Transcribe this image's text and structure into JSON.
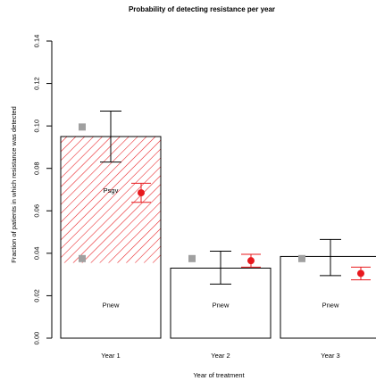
{
  "chart_data": {
    "type": "bar",
    "title": "Probability of detecting resistance per year",
    "xlabel": "Year of treatment",
    "ylabel": "Fraction of patients in which resistance was detected",
    "ylim": [
      0,
      0.14
    ],
    "yticks": [
      "0.00",
      "0.02",
      "0.04",
      "0.06",
      "0.08",
      "0.10",
      "0.12",
      "0.14"
    ],
    "categories": [
      "Year 1",
      "Year 2",
      "Year 3"
    ],
    "bars": [
      {
        "category": "Year 1",
        "total": 0.095,
        "error_low": 0.083,
        "error_high": 0.107,
        "segments": [
          {
            "label": "Pnew",
            "value": 0.0355,
            "fill": "white"
          },
          {
            "label": "Psgv",
            "value": 0.0595,
            "fill": "red-hatched"
          }
        ],
        "grey_points": [
          0.0995,
          0.0375
        ],
        "red_point": {
          "value": 0.0685,
          "error_low": 0.064,
          "error_high": 0.073
        }
      },
      {
        "category": "Year 2",
        "total": 0.033,
        "error_low": 0.0255,
        "error_high": 0.041,
        "segments": [
          {
            "label": "Pnew",
            "value": 0.033,
            "fill": "white"
          }
        ],
        "grey_points": [
          0.0375
        ],
        "red_point": {
          "value": 0.0365,
          "error_low": 0.0335,
          "error_high": 0.0395
        }
      },
      {
        "category": "Year 3",
        "total": 0.0385,
        "error_low": 0.0295,
        "error_high": 0.0465,
        "segments": [
          {
            "label": "Pnew",
            "value": 0.0385,
            "fill": "white"
          }
        ],
        "grey_points": [
          0.0375
        ],
        "red_point": {
          "value": 0.0305,
          "error_low": 0.0275,
          "error_high": 0.0335
        }
      }
    ],
    "colors": {
      "hatch": "#e8191e",
      "red_point": "#e8191e",
      "grey_point": "#a0a0a0",
      "bar_outline": "#000000"
    },
    "grid": false,
    "legend": "none"
  }
}
